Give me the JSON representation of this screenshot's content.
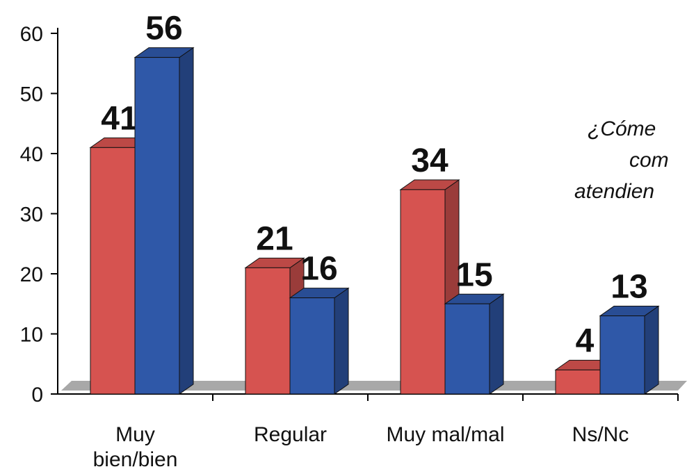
{
  "chart_data": {
    "type": "bar3d",
    "categories": [
      "Muy\nbien/bien",
      "Regular",
      "Muy mal/mal",
      "Ns/Nc"
    ],
    "series": [
      {
        "color": "#d65350",
        "values": [
          41,
          21,
          34,
          4
        ]
      },
      {
        "color": "#2f58a8",
        "values": [
          56,
          16,
          15,
          13
        ]
      }
    ],
    "ylim": [
      0,
      60
    ],
    "yticks": [
      0,
      10,
      20,
      30,
      40,
      50,
      60
    ],
    "grid": false,
    "annotation": [
      "¿Cóme",
      "com",
      "atendien"
    ]
  }
}
